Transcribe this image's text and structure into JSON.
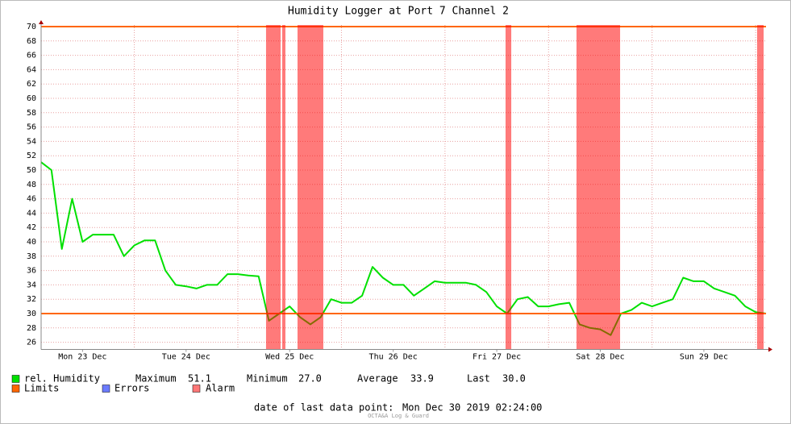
{
  "chart_data": {
    "type": "line",
    "title": "Humidity Logger at Port 7 Channel 2",
    "x": [
      23.1,
      23.2,
      23.3,
      23.4,
      23.5,
      23.6,
      23.7,
      23.8,
      23.9,
      24.0,
      24.1,
      24.2,
      24.3,
      24.4,
      24.5,
      24.6,
      24.7,
      24.8,
      24.9,
      25.0,
      25.1,
      25.2,
      25.3,
      25.4,
      25.5,
      25.6,
      25.7,
      25.8,
      25.9,
      26.0,
      26.1,
      26.2,
      26.3,
      26.4,
      26.5,
      26.6,
      26.7,
      26.8,
      26.9,
      27.0,
      27.1,
      27.2,
      27.3,
      27.4,
      27.5,
      27.6,
      27.7,
      27.8,
      27.9,
      28.0,
      28.1,
      28.2,
      28.3,
      28.4,
      28.5,
      28.6,
      28.7,
      28.8,
      28.9,
      29.0,
      29.1,
      29.2,
      29.3,
      29.4,
      29.5,
      29.6,
      29.7,
      29.8,
      29.9,
      30.0,
      30.1
    ],
    "series": [
      {
        "name": "rel. Humidity",
        "color": "#00e000",
        "values": [
          51.1,
          50,
          39,
          46,
          40,
          41,
          41,
          41,
          38,
          39.5,
          40.2,
          40.2,
          36,
          34,
          33.8,
          33.5,
          34,
          34,
          35.5,
          35.5,
          35.3,
          35.2,
          29,
          30,
          31,
          29.5,
          28.5,
          29.5,
          32,
          31.5,
          31.5,
          32.5,
          36.5,
          35,
          34,
          34,
          32.5,
          33.5,
          34.5,
          34.3,
          34.3,
          34.3,
          34,
          33,
          31,
          30,
          32,
          32.3,
          31,
          31,
          31.3,
          31.5,
          28.5,
          28,
          27.8,
          27,
          30,
          30.5,
          31.5,
          31,
          31.5,
          32,
          35,
          34.5,
          34.5,
          33.5,
          33,
          32.5,
          31,
          30.2,
          30
        ]
      }
    ],
    "limits": {
      "name": "Limits",
      "color": "#ff6600",
      "values": [
        30,
        70
      ]
    },
    "errors": {
      "name": "Errors",
      "color": "#6b7bff"
    },
    "alarm": {
      "name": "Alarm",
      "color": "#ff0000",
      "intervals": [
        [
          25.272,
          25.413
        ],
        [
          25.428,
          25.459
        ],
        [
          25.576,
          25.825
        ],
        [
          27.585,
          27.64
        ],
        [
          28.27,
          28.691
        ],
        [
          30.014,
          30.077
        ]
      ]
    },
    "stats": {
      "names": [
        "Maximum",
        "Minimum",
        "Average",
        "Last"
      ],
      "values": [
        51.1,
        27,
        33.9,
        30
      ],
      "value_labels": [
        "51.1",
        "27.0",
        "33.9",
        "30.0"
      ]
    },
    "xlim": [
      23.1,
      30.1
    ],
    "xticks": [
      {
        "value": 23.5,
        "label": "Mon 23 Dec"
      },
      {
        "value": 24.5,
        "label": "Tue 24 Dec"
      },
      {
        "value": 25.5,
        "label": "Wed 25 Dec"
      },
      {
        "value": 26.5,
        "label": "Thu 26 Dec"
      },
      {
        "value": 27.5,
        "label": "Fri 27 Dec"
      },
      {
        "value": 28.5,
        "label": "Sat 28 Dec"
      },
      {
        "value": 29.5,
        "label": "Sun 29 Dec"
      }
    ],
    "xgrid": [
      24,
      25,
      26,
      27,
      28,
      29,
      30
    ],
    "ylim": [
      25,
      70
    ],
    "yticks": [
      26,
      28,
      30,
      32,
      34,
      36,
      38,
      40,
      42,
      44,
      46,
      48,
      50,
      52,
      54,
      56,
      58,
      60,
      62,
      64,
      66,
      68,
      70
    ],
    "grid": true,
    "footer_label": "date of last data point:",
    "footer_value": "Mon Dec 30 2019 02:24:00",
    "watermark": "OCTA&A Log & Guard"
  }
}
